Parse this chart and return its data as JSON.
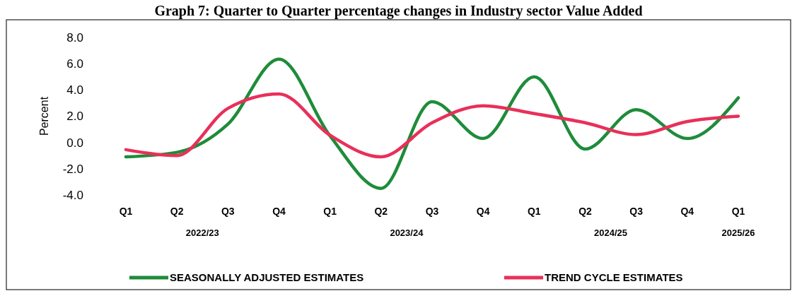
{
  "chart_data": {
    "type": "line",
    "title": "Graph 7: Quarter to Quarter percentage changes in Industry sector Value Added",
    "ylabel": "Percent",
    "categories": [
      "Q1",
      "Q2",
      "Q3",
      "Q4",
      "Q1",
      "Q2",
      "Q3",
      "Q4",
      "Q1",
      "Q2",
      "Q3",
      "Q4",
      "Q1"
    ],
    "series": [
      {
        "name": "SEASONALLY ADJUSTED ESTIMATES",
        "color": "#1e8c3a",
        "values": [
          -1.1,
          -0.75,
          1.4,
          6.35,
          0.5,
          -3.5,
          3.1,
          0.3,
          5.0,
          -0.5,
          2.5,
          0.3,
          3.4
        ]
      },
      {
        "name": "TREND CYCLE ESTIMATES",
        "color": "#e8305a",
        "values": [
          -0.55,
          -1.0,
          2.6,
          3.7,
          0.55,
          -1.1,
          1.5,
          2.8,
          2.2,
          1.5,
          0.6,
          1.6,
          2.0
        ]
      }
    ],
    "ylim": [
      -4,
      8
    ],
    "yticks": [
      {
        "value": -4,
        "label": "-4.0"
      },
      {
        "value": -2,
        "label": "-2.0"
      },
      {
        "value": 0,
        "label": "0.0"
      },
      {
        "value": 2,
        "label": "2.0"
      },
      {
        "value": 4,
        "label": "4.0"
      },
      {
        "value": 6,
        "label": "6.0"
      },
      {
        "value": 8,
        "label": "8.0"
      }
    ],
    "annotations": [
      "2022/23",
      "2023/24",
      "2024/25",
      "2025/26"
    ],
    "legend": "bottom",
    "line_style": "solid"
  }
}
